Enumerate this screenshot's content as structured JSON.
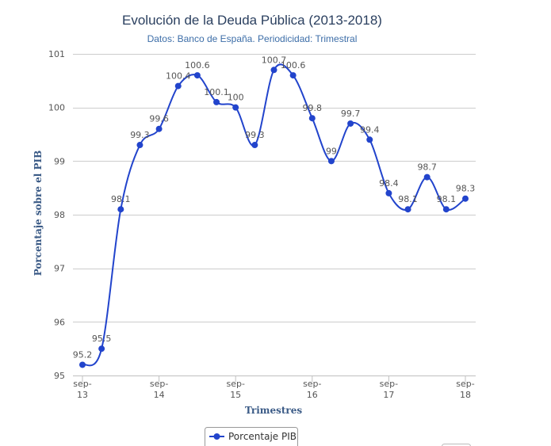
{
  "chart_data": {
    "type": "line",
    "title": "Evolución de la Deuda Pública (2013-2018)",
    "subtitle": "Datos: Banco de España. Periodicidad: Trimestral",
    "xlabel": "Trimestres",
    "ylabel": "Porcentaje sobre el PIB",
    "ylim": [
      95,
      101
    ],
    "yticks": [
      95,
      96,
      97,
      98,
      99,
      100,
      101
    ],
    "grid": true,
    "legend_position": "bottom-center",
    "x_ticks": [
      {
        "index": 0,
        "line1": "sep-",
        "line2": "13"
      },
      {
        "index": 4,
        "line1": "sep-",
        "line2": "14"
      },
      {
        "index": 8,
        "line1": "sep-",
        "line2": "15"
      },
      {
        "index": 12,
        "line1": "sep-",
        "line2": "16"
      },
      {
        "index": 16,
        "line1": "sep-",
        "line2": "17"
      },
      {
        "index": 20,
        "line1": "sep-",
        "line2": "18"
      }
    ],
    "series": [
      {
        "name": "Porcentaje PIB",
        "color": "#2244cc",
        "values": [
          95.2,
          95.5,
          98.1,
          99.3,
          99.6,
          100.4,
          100.6,
          100.1,
          100,
          99.3,
          100.7,
          100.6,
          99.8,
          99,
          99.7,
          99.4,
          98.4,
          98.1,
          98.7,
          98.1,
          98.3
        ],
        "labels": [
          "95.2",
          "95.5",
          "98.1",
          "99.3",
          "99.6",
          "100.4",
          "100.6",
          "100.1",
          "100",
          "99.3",
          "100.7",
          "100.6",
          "99.8",
          "99",
          "99.7",
          "99.4",
          "98.4",
          "98.1",
          "98.7",
          "98.1",
          "98.3"
        ]
      }
    ]
  },
  "colors": {
    "grid": "#cccccc",
    "axis": "#c0c0c0",
    "series": "#2244cc"
  }
}
